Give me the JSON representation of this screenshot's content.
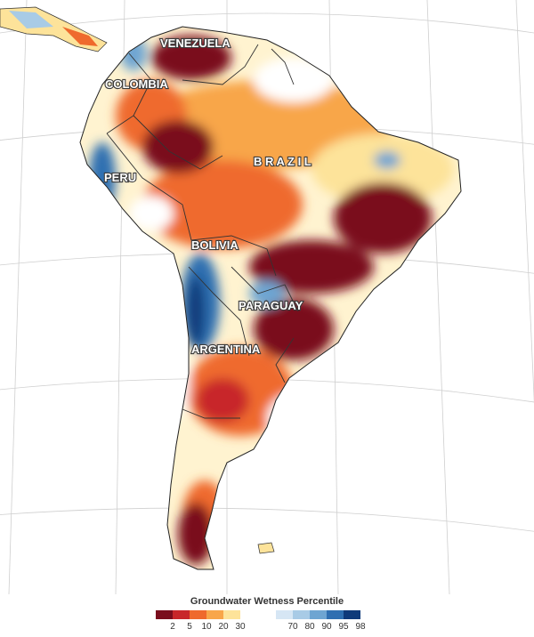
{
  "map": {
    "country_labels": [
      {
        "id": "venezuela",
        "text": "VENEZUELA"
      },
      {
        "id": "colombia",
        "text": "COLOMBIA"
      },
      {
        "id": "brazil",
        "text": "B R A Z I L"
      },
      {
        "id": "peru",
        "text": "PERU"
      },
      {
        "id": "bolivia",
        "text": "BOLIVIA"
      },
      {
        "id": "paraguay",
        "text": "PARAGUAY"
      },
      {
        "id": "argentina",
        "text": "ARGENTINA"
      }
    ]
  },
  "legend": {
    "title": "Groundwater Wetness Percentile",
    "dry_colors": [
      "#7a0d1d",
      "#c8262a",
      "#ef6a2d",
      "#f8a64a",
      "#fde39a"
    ],
    "wet_colors": [
      "#d6e6f4",
      "#a8cbe6",
      "#6ea5d2",
      "#2f6fb1",
      "#0f3a7a"
    ],
    "dry_ticks": [
      "2",
      "5",
      "10",
      "20",
      "30"
    ],
    "wet_ticks": [
      "70",
      "80",
      "90",
      "95",
      "98"
    ]
  }
}
